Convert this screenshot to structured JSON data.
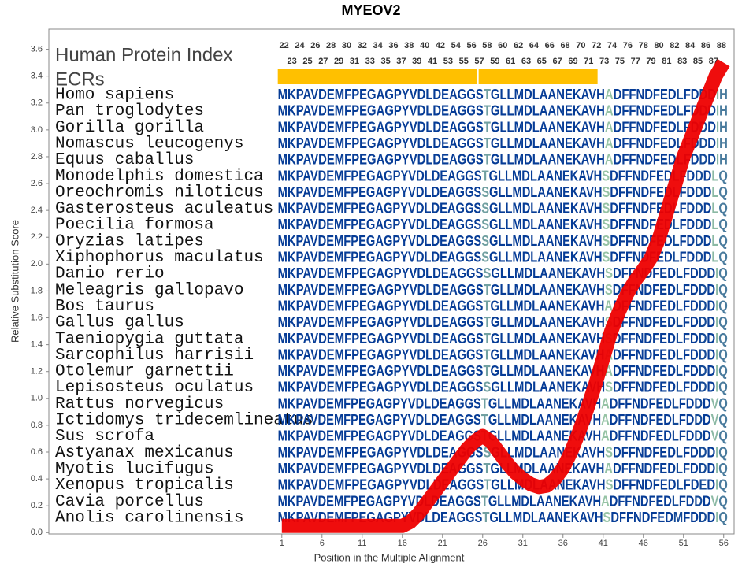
{
  "chart_data": {
    "type": "line",
    "title": "MYEOV2",
    "x_label": "Position in the Multiple Alignment",
    "y_label": "Relative Substitution Score",
    "protein_index_label": "Human Protein Index",
    "ecr_label": "ECRs",
    "xlim": [
      -28,
      57.3
    ],
    "ylim": [
      -0.01,
      3.75
    ],
    "xticks": [
      1,
      6,
      11,
      16,
      21,
      26,
      31,
      36,
      41,
      46,
      51,
      56
    ],
    "yticks": [
      {
        "value": 0,
        "label": "0.0"
      },
      0.2,
      0.4,
      0.6,
      0.8,
      {
        "value": 1,
        "label": "1.0"
      },
      1.2,
      1.4,
      1.6,
      1.8,
      {
        "value": 2,
        "label": "2.0"
      },
      2.2,
      2.4,
      2.6,
      2.8,
      {
        "value": 3,
        "label": "3.0"
      },
      3.2,
      3.4,
      3.6
    ],
    "protein_index_top": [
      22,
      24,
      26,
      28,
      30,
      32,
      34,
      36,
      38,
      40,
      42,
      54,
      56,
      58,
      60,
      62,
      64,
      66,
      68,
      70,
      72,
      74,
      76,
      78,
      80,
      82,
      84,
      86,
      88
    ],
    "protein_index_bottom": [
      23,
      25,
      27,
      29,
      31,
      33,
      35,
      37,
      39,
      41,
      53,
      55,
      57,
      59,
      61,
      63,
      65,
      67,
      69,
      71,
      73,
      75,
      77,
      79,
      81,
      83,
      85,
      87
    ],
    "ecrs": [
      [
        1,
        25
      ],
      [
        26,
        40
      ]
    ],
    "ecr_color": "#ffc000",
    "series": [
      {
        "name": "Relative Substitution Score",
        "color": "#ee0000",
        "x": [
          1,
          2,
          3,
          4,
          5,
          6,
          7,
          8,
          9,
          10,
          11,
          12,
          13,
          14,
          15,
          16,
          17,
          18,
          19,
          20,
          21,
          22,
          23,
          24,
          25,
          26,
          27,
          28,
          29,
          30,
          31,
          32,
          33,
          34,
          35,
          36,
          37,
          38,
          39,
          40,
          41,
          42,
          43,
          44,
          45,
          46,
          47,
          48,
          49,
          50,
          51,
          52,
          53,
          54,
          55,
          56
        ],
        "values": [
          0.05,
          0.05,
          0.05,
          0.05,
          0.05,
          0.05,
          0.05,
          0.05,
          0.05,
          0.05,
          0.05,
          0.05,
          0.05,
          0.05,
          0.05,
          0.05,
          0.08,
          0.14,
          0.22,
          0.3,
          0.38,
          0.46,
          0.54,
          0.62,
          0.68,
          0.72,
          0.68,
          0.6,
          0.52,
          0.45,
          0.4,
          0.36,
          0.34,
          0.35,
          0.4,
          0.48,
          0.6,
          0.75,
          0.92,
          1.1,
          1.3,
          1.5,
          1.65,
          1.78,
          1.88,
          1.96,
          2.05,
          2.2,
          2.4,
          2.6,
          2.8,
          2.95,
          3.1,
          3.25,
          3.4,
          3.5
        ]
      }
    ],
    "rows": [
      {
        "name": "Homo sapiens",
        "sequence": "MKPAVDEMFPEGAGPYVDLDEAGGSTGLLMDLAANEKAVHADFFNDFEDLFDDDIH"
      },
      {
        "name": "Pan troglodytes",
        "sequence": "MKPAVDEMFPEGAGPYVDLDEAGGSTGLLMDLAANEKAVHADFFNDFEDLFDDDIH"
      },
      {
        "name": "Gorilla gorilla",
        "sequence": "MKPAVDEMFPEGAGPYVDLDEAGGSTGLLMDLAANEKAVHADFFNDFEDLFDDDIH"
      },
      {
        "name": "Nomascus leucogenys",
        "sequence": "MKPAVDEMFPEGAGPYVDLDEAGGSTGLLMDLAANEKAVHADFFNDFEDLFDDDIH"
      },
      {
        "name": "Equus caballus",
        "sequence": "MKPAVDEMFPEGAGPYVDLDEAGGSTGLLMDLAANEKAVHADFFNDFEDLFDDDIH"
      },
      {
        "name": "Monodelphis domestica",
        "sequence": "MKPAVDEMFPEGAGPYVDLDEAGGSTGLLMDLAANEKAVHSDFFNDFEDLFDDDLQ"
      },
      {
        "name": "Oreochromis niloticus",
        "sequence": "MKPAVDEMFPEGAGPYVDLDEAGGSSGLLMDLAANEKAVHSDFFNDFEDLFDDDLQ"
      },
      {
        "name": "Gasterosteus aculeatus",
        "sequence": "MKPAVDEMFPEGAGPYVDLDEAGGSSGLLMDLAANEKAVHSDFFNDFEDLFDDDLQ"
      },
      {
        "name": "Poecilia formosa",
        "sequence": "MKPAVDEMFPEGAGPYVDLDEAGGSSGLLMDLAANEKAVHSDFFNDFEDLFDDDLQ"
      },
      {
        "name": "Oryzias latipes",
        "sequence": "MKPAVDEMFPEGAGPYVDLDEAGGSSGLLMDLAANEKAVHSDFFNDFEDLFDDDLQ"
      },
      {
        "name": "Xiphophorus maculatus",
        "sequence": "MKPAVDEMFPEGAGPYVDLDEAGGSSGLLMDLAANEKAVHSDFFNDFEDLFDDDLQ"
      },
      {
        "name": "Danio rerio",
        "sequence": "MKPAVDEMFPEGAGPYVDLDEAGGSSGLLMDLAANEKAVHSDFFNDFEDLFDDDIQ"
      },
      {
        "name": "Meleagris gallopavo",
        "sequence": "MKPAVDEMFPEGAGPYVDLDEAGGSTGLLMDLAANEKAVHSDFFNDFEDLFDDDIQ"
      },
      {
        "name": "Bos taurus",
        "sequence": "MKPAVDEMFPEGAGPYVDLDEAGGSTGLLMDLAANEKAVHADFFNDFEDLFDDDIQ"
      },
      {
        "name": "Gallus gallus",
        "sequence": "MKPAVDEMFPEGAGPYVDLDEAGGSTGLLMDLAANEKAVHSDFFNDFEDLFDDDIQ"
      },
      {
        "name": "Taeniopygia guttata",
        "sequence": "MKPAVDEMFPEGAGPYVDLDEAGGSTGLLMDLAANEKAVHSDFFNDFEDLFDDDIQ"
      },
      {
        "name": "Sarcophilus harrisii",
        "sequence": "MKPAVDEMFPEGAGPYVDLDEAGGSTGLLMDLAANEKAVHADFFNDFEDLFDDDIQ"
      },
      {
        "name": "Otolemur garnettii",
        "sequence": "MKPAVDEMFPEGAGPYVDLDEAGGSTGLLMDLAANEKAVHADFFNDFEDLFDDDIQ"
      },
      {
        "name": "Lepisosteus oculatus",
        "sequence": "MKPAVDEMFPEGAGPYVDLDEAGGSSGLLMDLAANEKAVHSDFFNDFEDLFDDDIQ"
      },
      {
        "name": "Rattus norvegicus",
        "sequence": "MKPAVDEMFPEGAGPYVDLDEAGGSTGLLMDLAANEKAVHADFFNDFEDLFDDDVQ"
      },
      {
        "name": "Ictidomys tridecemlineatus",
        "sequence": "MKPAVDEMFPEGAGPYVDLDEAGGSTGLLMDLAANEKAVHADFFNDFEDLFDDDVQ"
      },
      {
        "name": "Sus scrofa",
        "sequence": "MKPAVDEMFPEGAGPYVDLDEAGGSTGLLMDLAANEKAVHADFFNDFEDLFDDDVQ"
      },
      {
        "name": "Astyanax mexicanus",
        "sequence": "MKPAVDEMFPEGAGPYVDLDEAGGSSGLLMDLAANEKAVHSDFFNDFEDLFDDDIQ"
      },
      {
        "name": "Myotis lucifugus",
        "sequence": "MKPAVDEMFPEGAGPYVDLDEAGGSTGLLMDLAANEKAVHADFFNDFEDLFDDDIQ"
      },
      {
        "name": "Xenopus tropicalis",
        "sequence": "MKPAVDEMFPEGAGPYVDLDEAGGSTGLLMDLAANEKAVHSDFFNDFEDLFDEDIQ"
      },
      {
        "name": "Cavia porcellus",
        "sequence": "MKPAVDEMFPEGAGPYVDLDEAGGSTGLLMDLAANEKAVHADFFNDFEDLFDDDVQ"
      },
      {
        "name": "Anolis carolinensis",
        "sequence": "MKPAVDEMFPEGAGPYVDLDEAGGSTGLLMDLAANEKAVHSDFFNDFEDMFDDDIQ"
      }
    ]
  }
}
